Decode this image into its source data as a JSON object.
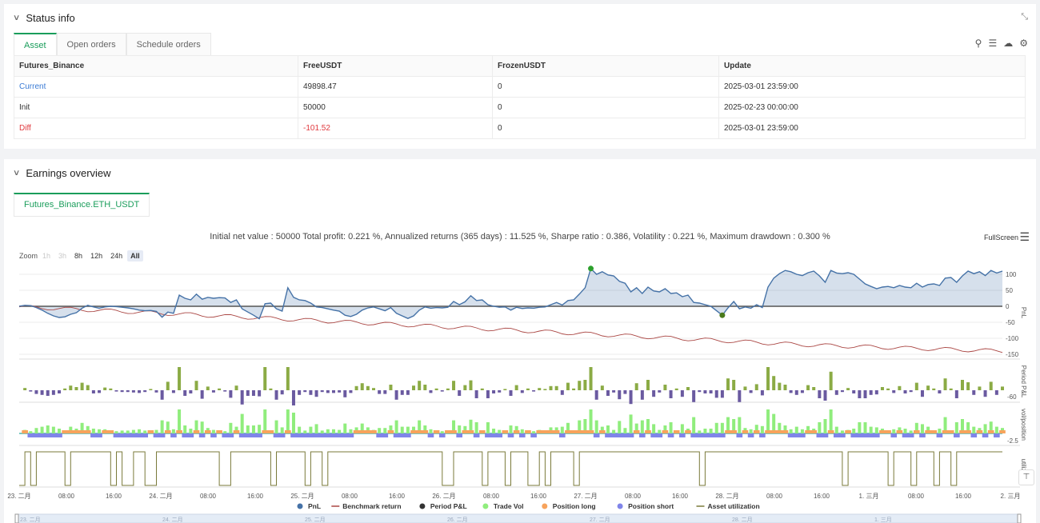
{
  "status": {
    "title": "Status info",
    "tabs": [
      "Asset",
      "Open orders",
      "Schedule orders"
    ],
    "table": {
      "headers": [
        "Futures_Binance",
        "FreeUSDT",
        "FrozenUSDT",
        "Update"
      ],
      "rows": [
        [
          "Current",
          "49898.47",
          "0",
          "2025-03-01 23:59:00"
        ],
        [
          "Init",
          "50000",
          "0",
          "2025-02-23 00:00:00"
        ],
        [
          "Diff",
          "-101.52",
          "0",
          "2025-03-01 23:59:00"
        ]
      ]
    }
  },
  "earnings": {
    "title": "Earnings overview",
    "tab": "Futures_Binance.ETH_USDT",
    "summary": "Initial net value : 50000 Total profit: 0.221 %, Annualized returns (365 days) : 11.525 %, Sharpe ratio : 0.386, Volatility : 0.221 %, Maximum drawdown : 0.300 %",
    "fullscreen": "FullScreen",
    "zoom_label": "Zoom",
    "zoom_buttons": [
      "1h",
      "3h",
      "8h",
      "12h",
      "24h",
      "All"
    ]
  },
  "chart_data": {
    "type": "line",
    "pnl_axis_ticks": [
      100,
      50,
      0,
      -50,
      -100,
      -150
    ],
    "period_axis_ticks": [
      -60
    ],
    "vol_axis_ticks": [
      -2.5
    ],
    "axis_titles": [
      "PnL",
      "Period P&L",
      "vol/position",
      "utiliza..."
    ],
    "x_ticks": [
      "23. 二月",
      "08:00",
      "16:00",
      "24. 二月",
      "08:00",
      "16:00",
      "25. 二月",
      "08:00",
      "16:00",
      "26. 二月",
      "08:00",
      "16:00",
      "27. 二月",
      "08:00",
      "16:00",
      "28. 二月",
      "08:00",
      "16:00",
      "1. 三月",
      "08:00",
      "16:00",
      "2. 三月"
    ],
    "navigator_ticks": [
      "23. 二月",
      "24. 二月",
      "25. 二月",
      "26. 二月",
      "27. 二月",
      "28. 二月",
      "1. 三月"
    ],
    "legend": [
      {
        "name": "PnL",
        "color": "#4572a7",
        "marker": "dot"
      },
      {
        "name": "Benchmark return",
        "color": "#aa4643",
        "marker": "line"
      },
      {
        "name": "Period P&L",
        "color": "#333333",
        "marker": "dot"
      },
      {
        "name": "Trade Vol",
        "color": "#90ed7d",
        "marker": "dot"
      },
      {
        "name": "Position long",
        "color": "#f7a35c",
        "marker": "dot"
      },
      {
        "name": "Position short",
        "color": "#8085e9",
        "marker": "dot"
      },
      {
        "name": "Asset utilization",
        "color": "#7a7a3a",
        "marker": "line"
      }
    ],
    "pnl": [
      0,
      3,
      2,
      -4,
      -12,
      -22,
      -30,
      -35,
      -33,
      -25,
      -20,
      -6,
      3,
      -2,
      -6,
      -2,
      0,
      -1,
      -3,
      -5,
      -8,
      -12,
      -14,
      -13,
      -16,
      -34,
      -18,
      -22,
      35,
      25,
      20,
      38,
      22,
      28,
      25,
      27,
      26,
      12,
      20,
      -8,
      -18,
      -28,
      -39,
      8,
      10,
      -8,
      -15,
      58,
      28,
      20,
      18,
      10,
      -2,
      -4,
      -8,
      -12,
      -15,
      -28,
      -32,
      -25,
      -12,
      -5,
      -2,
      -8,
      -14,
      -4,
      -22,
      -30,
      -38,
      -30,
      -12,
      -2,
      -6,
      -4,
      -5,
      -3,
      15,
      5,
      14,
      33,
      18,
      20,
      5,
      0,
      -3,
      -2,
      -12,
      -3,
      -7,
      -5,
      -6,
      -3,
      -2,
      5,
      12,
      4,
      18,
      20,
      38,
      58,
      118,
      100,
      108,
      98,
      95,
      78,
      72,
      45,
      58,
      40,
      60,
      48,
      45,
      55,
      40,
      42,
      30,
      35,
      12,
      10,
      5,
      0,
      -14,
      -28,
      -5,
      15,
      -8,
      -2,
      -6,
      5,
      -4,
      60,
      88,
      102,
      112,
      108,
      100,
      96,
      105,
      110,
      95,
      75,
      112,
      104,
      102,
      105,
      100,
      85,
      70,
      62,
      55,
      60,
      62,
      58,
      65,
      60,
      58,
      72,
      60,
      68,
      70,
      65,
      88,
      90,
      75,
      95,
      110,
      102,
      108,
      96,
      112,
      104,
      110
    ]
  }
}
